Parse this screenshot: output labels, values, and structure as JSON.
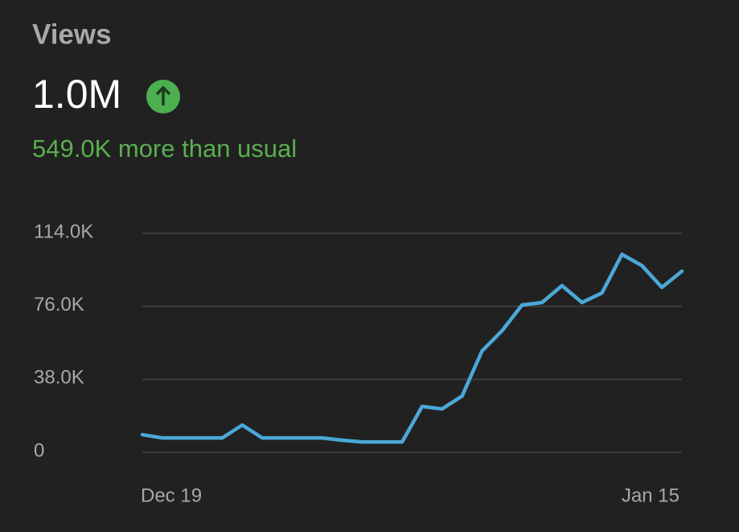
{
  "header": {
    "title": "Views",
    "value": "1.0M",
    "note": "549.0K more than usual"
  },
  "chart_data": {
    "type": "line",
    "categories": [
      "Dec 19",
      null,
      null,
      null,
      null,
      null,
      null,
      null,
      null,
      null,
      null,
      null,
      null,
      null,
      null,
      null,
      null,
      null,
      null,
      null,
      null,
      null,
      null,
      null,
      null,
      null,
      null,
      "Jan 15"
    ],
    "series": [
      {
        "color": "#4aa8d8",
        "values": [
          9200,
          7500,
          7500,
          7500,
          7500,
          14200,
          7500,
          7500,
          7500,
          7500,
          6300,
          5400,
          5400,
          5400,
          23900,
          22600,
          29300,
          52800,
          63300,
          76700,
          78000,
          86800,
          78000,
          83000,
          103100,
          97200,
          85900,
          94300
        ]
      }
    ],
    "ylim": [
      0,
      114000
    ],
    "yticks": [
      0,
      {
        "value": 38000,
        "label": "38.0K"
      },
      {
        "value": 76000,
        "label": "76.0K"
      },
      {
        "value": 114000,
        "label": "114.0K"
      }
    ],
    "grid": true
  }
}
